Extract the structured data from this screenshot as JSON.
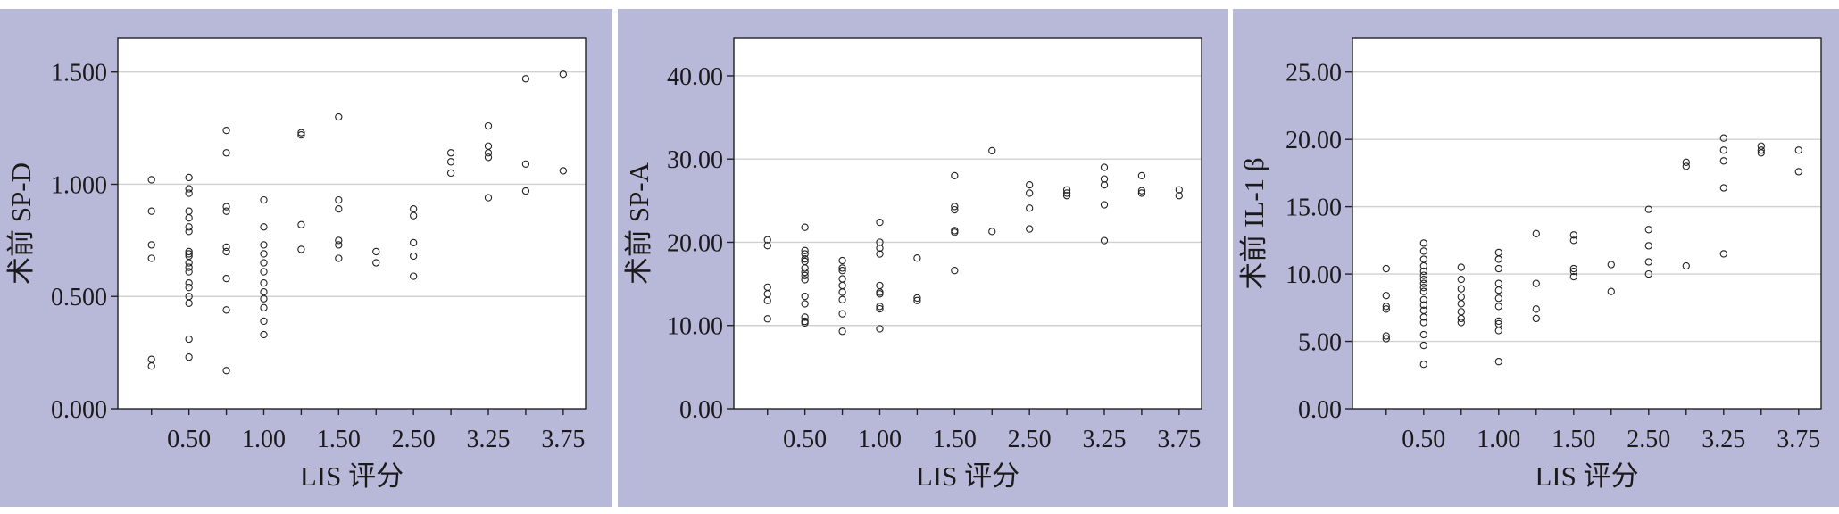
{
  "colors": {
    "panel_background": "#b8b8d9",
    "plot_background": "#ffffff",
    "gridline": "#d0d0d0",
    "axis": "#222222",
    "marker": "#222222"
  },
  "chart_data": [
    {
      "type": "scatter",
      "xlabel": "LIS 评分",
      "ylabel": "术前 SP-D",
      "x_categories": [
        "0.25",
        "0.50",
        "0.75",
        "1.00",
        "1.25",
        "1.50",
        "1.75",
        "2.50",
        "2.75",
        "3.25",
        "3.50",
        "3.75"
      ],
      "x_tick_labels": [
        "0.50",
        "1.00",
        "1.50",
        "2.50",
        "3.25",
        "3.75"
      ],
      "y_ticks": [
        "0.000",
        "0.500",
        "1.000",
        "1.500"
      ],
      "ylim": [
        0,
        1.65
      ],
      "grid": "horizontal",
      "points": [
        [
          "0.25",
          1.02
        ],
        [
          "0.25",
          0.88
        ],
        [
          "0.25",
          0.73
        ],
        [
          "0.25",
          0.67
        ],
        [
          "0.25",
          0.22
        ],
        [
          "0.25",
          0.19
        ],
        [
          "0.50",
          1.03
        ],
        [
          "0.50",
          0.98
        ],
        [
          "0.50",
          0.96
        ],
        [
          "0.50",
          0.88
        ],
        [
          "0.50",
          0.85
        ],
        [
          "0.50",
          0.81
        ],
        [
          "0.50",
          0.79
        ],
        [
          "0.50",
          0.7
        ],
        [
          "0.50",
          0.69
        ],
        [
          "0.50",
          0.68
        ],
        [
          "0.50",
          0.65
        ],
        [
          "0.50",
          0.63
        ],
        [
          "0.50",
          0.61
        ],
        [
          "0.50",
          0.56
        ],
        [
          "0.50",
          0.54
        ],
        [
          "0.50",
          0.5
        ],
        [
          "0.50",
          0.47
        ],
        [
          "0.50",
          0.31
        ],
        [
          "0.50",
          0.23
        ],
        [
          "0.75",
          1.24
        ],
        [
          "0.75",
          1.14
        ],
        [
          "0.75",
          0.9
        ],
        [
          "0.75",
          0.88
        ],
        [
          "0.75",
          0.72
        ],
        [
          "0.75",
          0.7
        ],
        [
          "0.75",
          0.58
        ],
        [
          "0.75",
          0.44
        ],
        [
          "0.75",
          0.17
        ],
        [
          "1.00",
          0.93
        ],
        [
          "1.00",
          0.81
        ],
        [
          "1.00",
          0.73
        ],
        [
          "1.00",
          0.69
        ],
        [
          "1.00",
          0.65
        ],
        [
          "1.00",
          0.61
        ],
        [
          "1.00",
          0.56
        ],
        [
          "1.00",
          0.52
        ],
        [
          "1.00",
          0.49
        ],
        [
          "1.00",
          0.45
        ],
        [
          "1.00",
          0.39
        ],
        [
          "1.00",
          0.33
        ],
        [
          "1.25",
          1.23
        ],
        [
          "1.25",
          1.22
        ],
        [
          "1.25",
          0.82
        ],
        [
          "1.25",
          0.71
        ],
        [
          "1.50",
          1.3
        ],
        [
          "1.50",
          0.93
        ],
        [
          "1.50",
          0.89
        ],
        [
          "1.50",
          0.75
        ],
        [
          "1.50",
          0.73
        ],
        [
          "1.50",
          0.67
        ],
        [
          "1.75",
          0.7
        ],
        [
          "1.75",
          0.65
        ],
        [
          "2.50",
          0.89
        ],
        [
          "2.50",
          0.86
        ],
        [
          "2.50",
          0.74
        ],
        [
          "2.50",
          0.68
        ],
        [
          "2.50",
          0.59
        ],
        [
          "2.75",
          1.14
        ],
        [
          "2.75",
          1.1
        ],
        [
          "2.75",
          1.05
        ],
        [
          "3.25",
          1.26
        ],
        [
          "3.25",
          1.17
        ],
        [
          "3.25",
          1.14
        ],
        [
          "3.25",
          1.12
        ],
        [
          "3.25",
          0.94
        ],
        [
          "3.50",
          1.47
        ],
        [
          "3.50",
          1.09
        ],
        [
          "3.50",
          0.97
        ],
        [
          "3.75",
          1.49
        ],
        [
          "3.75",
          1.06
        ]
      ]
    },
    {
      "type": "scatter",
      "xlabel": "LIS 评分",
      "ylabel": "术前 SP-A",
      "x_categories": [
        "0.25",
        "0.50",
        "0.75",
        "1.00",
        "1.25",
        "1.50",
        "1.75",
        "2.50",
        "2.75",
        "3.25",
        "3.50",
        "3.75"
      ],
      "x_tick_labels": [
        "0.50",
        "1.00",
        "1.50",
        "2.50",
        "3.25",
        "3.75"
      ],
      "y_ticks": [
        "0.00",
        "10.00",
        "20.00",
        "30.00",
        "40.00"
      ],
      "ylim": [
        0,
        44.5
      ],
      "grid": "horizontal",
      "points": [
        [
          "0.25",
          20.3
        ],
        [
          "0.25",
          19.6
        ],
        [
          "0.25",
          14.6
        ],
        [
          "0.25",
          13.8
        ],
        [
          "0.25",
          13.0
        ],
        [
          "0.25",
          10.8
        ],
        [
          "0.50",
          21.8
        ],
        [
          "0.50",
          19.0
        ],
        [
          "0.50",
          18.6
        ],
        [
          "0.50",
          18.0
        ],
        [
          "0.50",
          17.7
        ],
        [
          "0.50",
          16.9
        ],
        [
          "0.50",
          16.4
        ],
        [
          "0.50",
          16.0
        ],
        [
          "0.50",
          15.5
        ],
        [
          "0.50",
          13.5
        ],
        [
          "0.50",
          12.6
        ],
        [
          "0.50",
          11.0
        ],
        [
          "0.50",
          10.5
        ],
        [
          "0.50",
          10.3
        ],
        [
          "0.75",
          17.8
        ],
        [
          "0.75",
          16.9
        ],
        [
          "0.75",
          16.6
        ],
        [
          "0.75",
          15.6
        ],
        [
          "0.75",
          14.8
        ],
        [
          "0.75",
          14.0
        ],
        [
          "0.75",
          13.1
        ],
        [
          "0.75",
          11.4
        ],
        [
          "0.75",
          9.3
        ],
        [
          "1.00",
          22.4
        ],
        [
          "1.00",
          20.0
        ],
        [
          "1.00",
          19.3
        ],
        [
          "1.00",
          18.6
        ],
        [
          "1.00",
          14.8
        ],
        [
          "1.00",
          14.0
        ],
        [
          "1.00",
          13.8
        ],
        [
          "1.00",
          12.3
        ],
        [
          "1.00",
          12.0
        ],
        [
          "1.00",
          9.6
        ],
        [
          "1.25",
          18.1
        ],
        [
          "1.25",
          13.3
        ],
        [
          "1.25",
          13.0
        ],
        [
          "1.50",
          28.0
        ],
        [
          "1.50",
          24.3
        ],
        [
          "1.50",
          23.9
        ],
        [
          "1.50",
          21.4
        ],
        [
          "1.50",
          21.2
        ],
        [
          "1.50",
          16.6
        ],
        [
          "1.75",
          31.0
        ],
        [
          "1.75",
          21.3
        ],
        [
          "2.50",
          26.9
        ],
        [
          "2.50",
          25.9
        ],
        [
          "2.50",
          24.1
        ],
        [
          "2.50",
          21.6
        ],
        [
          "2.75",
          26.3
        ],
        [
          "2.75",
          25.9
        ],
        [
          "2.75",
          25.6
        ],
        [
          "3.25",
          29.0
        ],
        [
          "3.25",
          27.6
        ],
        [
          "3.25",
          26.9
        ],
        [
          "3.25",
          24.5
        ],
        [
          "3.25",
          20.2
        ],
        [
          "3.50",
          28.0
        ],
        [
          "3.50",
          26.2
        ],
        [
          "3.50",
          25.9
        ],
        [
          "3.75",
          26.3
        ],
        [
          "3.75",
          25.6
        ]
      ]
    },
    {
      "type": "scatter",
      "xlabel": "LIS 评分",
      "ylabel": "术前 IL-1 β",
      "x_categories": [
        "0.25",
        "0.50",
        "0.75",
        "1.00",
        "1.25",
        "1.50",
        "1.75",
        "2.50",
        "2.75",
        "3.25",
        "3.50",
        "3.75"
      ],
      "x_tick_labels": [
        "0.50",
        "1.00",
        "1.50",
        "2.50",
        "3.25",
        "3.75"
      ],
      "y_ticks": [
        "0.00",
        "5.00",
        "10.00",
        "15.00",
        "20.00",
        "25.00"
      ],
      "ylim": [
        0,
        27.5
      ],
      "grid": "horizontal",
      "points": [
        [
          "0.25",
          10.4
        ],
        [
          "0.25",
          8.4
        ],
        [
          "0.25",
          7.6
        ],
        [
          "0.25",
          7.4
        ],
        [
          "0.25",
          5.4
        ],
        [
          "0.25",
          5.2
        ],
        [
          "0.50",
          12.3
        ],
        [
          "0.50",
          11.7
        ],
        [
          "0.50",
          11.1
        ],
        [
          "0.50",
          10.6
        ],
        [
          "0.50",
          10.2
        ],
        [
          "0.50",
          9.9
        ],
        [
          "0.50",
          9.6
        ],
        [
          "0.50",
          9.3
        ],
        [
          "0.50",
          9.0
        ],
        [
          "0.50",
          8.7
        ],
        [
          "0.50",
          8.1
        ],
        [
          "0.50",
          7.7
        ],
        [
          "0.50",
          7.3
        ],
        [
          "0.50",
          6.8
        ],
        [
          "0.50",
          6.4
        ],
        [
          "0.50",
          5.5
        ],
        [
          "0.50",
          4.7
        ],
        [
          "0.50",
          3.3
        ],
        [
          "0.75",
          10.5
        ],
        [
          "0.75",
          9.6
        ],
        [
          "0.75",
          8.9
        ],
        [
          "0.75",
          8.3
        ],
        [
          "0.75",
          7.8
        ],
        [
          "0.75",
          7.2
        ],
        [
          "0.75",
          6.7
        ],
        [
          "0.75",
          6.4
        ],
        [
          "1.00",
          11.6
        ],
        [
          "1.00",
          11.1
        ],
        [
          "1.00",
          10.4
        ],
        [
          "1.00",
          9.3
        ],
        [
          "1.00",
          8.8
        ],
        [
          "1.00",
          8.2
        ],
        [
          "1.00",
          7.6
        ],
        [
          "1.00",
          6.5
        ],
        [
          "1.00",
          6.3
        ],
        [
          "1.00",
          5.8
        ],
        [
          "1.00",
          3.5
        ],
        [
          "1.25",
          13.0
        ],
        [
          "1.25",
          9.3
        ],
        [
          "1.25",
          7.4
        ],
        [
          "1.25",
          6.7
        ],
        [
          "1.50",
          12.9
        ],
        [
          "1.50",
          12.5
        ],
        [
          "1.50",
          10.4
        ],
        [
          "1.50",
          10.2
        ],
        [
          "1.50",
          9.8
        ],
        [
          "1.75",
          10.7
        ],
        [
          "1.75",
          8.7
        ],
        [
          "2.50",
          14.8
        ],
        [
          "2.50",
          13.3
        ],
        [
          "2.50",
          12.1
        ],
        [
          "2.50",
          10.9
        ],
        [
          "2.50",
          10.0
        ],
        [
          "2.75",
          18.3
        ],
        [
          "2.75",
          18.0
        ],
        [
          "2.75",
          10.6
        ],
        [
          "3.25",
          20.1
        ],
        [
          "3.25",
          19.2
        ],
        [
          "3.25",
          18.4
        ],
        [
          "3.25",
          16.4
        ],
        [
          "3.25",
          11.5
        ],
        [
          "3.50",
          19.5
        ],
        [
          "3.50",
          19.2
        ],
        [
          "3.50",
          19.0
        ],
        [
          "3.75",
          19.2
        ],
        [
          "3.75",
          17.6
        ]
      ]
    }
  ]
}
